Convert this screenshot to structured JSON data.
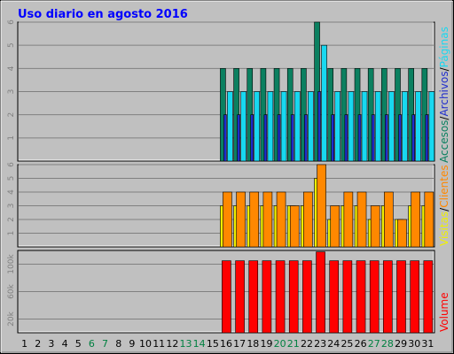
{
  "title": "Uso diario en agosto 2016",
  "colors": {
    "background": "#c0c0c0",
    "border": "#000000",
    "title": "#0000ff",
    "hits": "#0b8060",
    "files": "#1f2dcc",
    "pages": "#18d8f0",
    "visits": "#f0f000",
    "sites": "#ff8800",
    "volume": "#ff0000",
    "weekend_day": "#008040",
    "weekday": "#000000"
  },
  "side_labels": {
    "top": [
      "Accesos",
      "/",
      "Archivos",
      "/",
      "Páginas"
    ],
    "middle": [
      "Visitas",
      "/",
      "Clientes"
    ],
    "bottom": [
      "Volume"
    ]
  },
  "chart_data": [
    {
      "type": "bar",
      "panel": "accesos_archivos_paginas",
      "x": [
        1,
        2,
        3,
        4,
        5,
        6,
        7,
        8,
        9,
        10,
        11,
        12,
        13,
        14,
        15,
        16,
        17,
        18,
        19,
        20,
        21,
        22,
        23,
        24,
        25,
        26,
        27,
        28,
        29,
        30,
        31
      ],
      "ylim": [
        0,
        6
      ],
      "y_ticks": [
        "1",
        "2",
        "3",
        "4",
        "5",
        "6"
      ],
      "grid": true,
      "series": [
        {
          "name": "Accesos",
          "values": [
            0,
            0,
            0,
            0,
            0,
            0,
            0,
            0,
            0,
            0,
            0,
            0,
            0,
            0,
            0,
            4,
            4,
            4,
            4,
            4,
            4,
            4,
            6,
            4,
            4,
            4,
            4,
            4,
            4,
            4,
            4
          ]
        },
        {
          "name": "Archivos",
          "values": [
            0,
            0,
            0,
            0,
            0,
            0,
            0,
            0,
            0,
            0,
            0,
            0,
            0,
            0,
            0,
            2,
            2,
            2,
            2,
            2,
            2,
            2,
            3,
            2,
            2,
            2,
            2,
            2,
            2,
            2,
            2
          ]
        },
        {
          "name": "Páginas",
          "values": [
            0,
            0,
            0,
            0,
            0,
            0,
            0,
            0,
            0,
            0,
            0,
            0,
            0,
            0,
            0,
            3,
            3,
            3,
            3,
            3,
            3,
            3,
            5,
            3,
            3,
            3,
            3,
            3,
            3,
            3,
            3
          ]
        }
      ]
    },
    {
      "type": "bar",
      "panel": "visitas_clientes",
      "x": [
        1,
        2,
        3,
        4,
        5,
        6,
        7,
        8,
        9,
        10,
        11,
        12,
        13,
        14,
        15,
        16,
        17,
        18,
        19,
        20,
        21,
        22,
        23,
        24,
        25,
        26,
        27,
        28,
        29,
        30,
        31
      ],
      "ylim": [
        0,
        6
      ],
      "y_ticks": [
        "1",
        "2",
        "3",
        "4",
        "5",
        "6"
      ],
      "grid": true,
      "series": [
        {
          "name": "Visitas",
          "values": [
            0,
            0,
            0,
            0,
            0,
            0,
            0,
            0,
            0,
            0,
            0,
            0,
            0,
            0,
            0,
            3,
            3,
            3,
            3,
            3,
            3,
            3,
            5,
            2,
            3,
            3,
            2,
            3,
            2,
            3,
            3
          ]
        },
        {
          "name": "Clientes",
          "values": [
            0,
            0,
            0,
            0,
            0,
            0,
            0,
            0,
            0,
            0,
            0,
            0,
            0,
            0,
            0,
            4,
            4,
            4,
            4,
            4,
            3,
            4,
            6,
            3,
            4,
            4,
            3,
            4,
            2,
            4,
            4
          ]
        }
      ]
    },
    {
      "type": "bar",
      "panel": "volume",
      "x": [
        1,
        2,
        3,
        4,
        5,
        6,
        7,
        8,
        9,
        10,
        11,
        12,
        13,
        14,
        15,
        16,
        17,
        18,
        19,
        20,
        21,
        22,
        23,
        24,
        25,
        26,
        27,
        28,
        29,
        30,
        31
      ],
      "ylim": [
        0,
        120
      ],
      "y_ticks": [
        "20k",
        "60k",
        "100k"
      ],
      "y_tick_values": [
        20,
        60,
        100
      ],
      "grid": true,
      "series": [
        {
          "name": "Volume",
          "values": [
            0,
            0,
            0,
            0,
            0,
            0,
            0,
            0,
            0,
            0,
            0,
            0,
            0,
            0,
            0,
            105,
            105,
            105,
            105,
            105,
            105,
            105,
            118,
            105,
            105,
            105,
            105,
            105,
            105,
            105,
            105
          ]
        }
      ]
    }
  ],
  "x_labels": [
    {
      "text": "1",
      "weekend": false
    },
    {
      "text": "2",
      "weekend": false
    },
    {
      "text": "3",
      "weekend": false
    },
    {
      "text": "4",
      "weekend": false
    },
    {
      "text": "5",
      "weekend": false
    },
    {
      "text": "6",
      "weekend": true
    },
    {
      "text": "7",
      "weekend": true
    },
    {
      "text": "8",
      "weekend": false
    },
    {
      "text": "9",
      "weekend": false
    },
    {
      "text": "10",
      "weekend": false
    },
    {
      "text": "11",
      "weekend": false
    },
    {
      "text": "12",
      "weekend": false
    },
    {
      "text": "13",
      "weekend": true
    },
    {
      "text": "14",
      "weekend": true
    },
    {
      "text": "15",
      "weekend": false
    },
    {
      "text": "16",
      "weekend": false
    },
    {
      "text": "17",
      "weekend": false
    },
    {
      "text": "18",
      "weekend": false
    },
    {
      "text": "19",
      "weekend": false
    },
    {
      "text": "20",
      "weekend": true
    },
    {
      "text": "21",
      "weekend": true
    },
    {
      "text": "22",
      "weekend": false
    },
    {
      "text": "23",
      "weekend": false
    },
    {
      "text": "24",
      "weekend": false
    },
    {
      "text": "25",
      "weekend": false
    },
    {
      "text": "26",
      "weekend": false
    },
    {
      "text": "27",
      "weekend": true
    },
    {
      "text": "28",
      "weekend": true
    },
    {
      "text": "29",
      "weekend": false
    },
    {
      "text": "30",
      "weekend": false
    },
    {
      "text": "31",
      "weekend": false
    }
  ]
}
